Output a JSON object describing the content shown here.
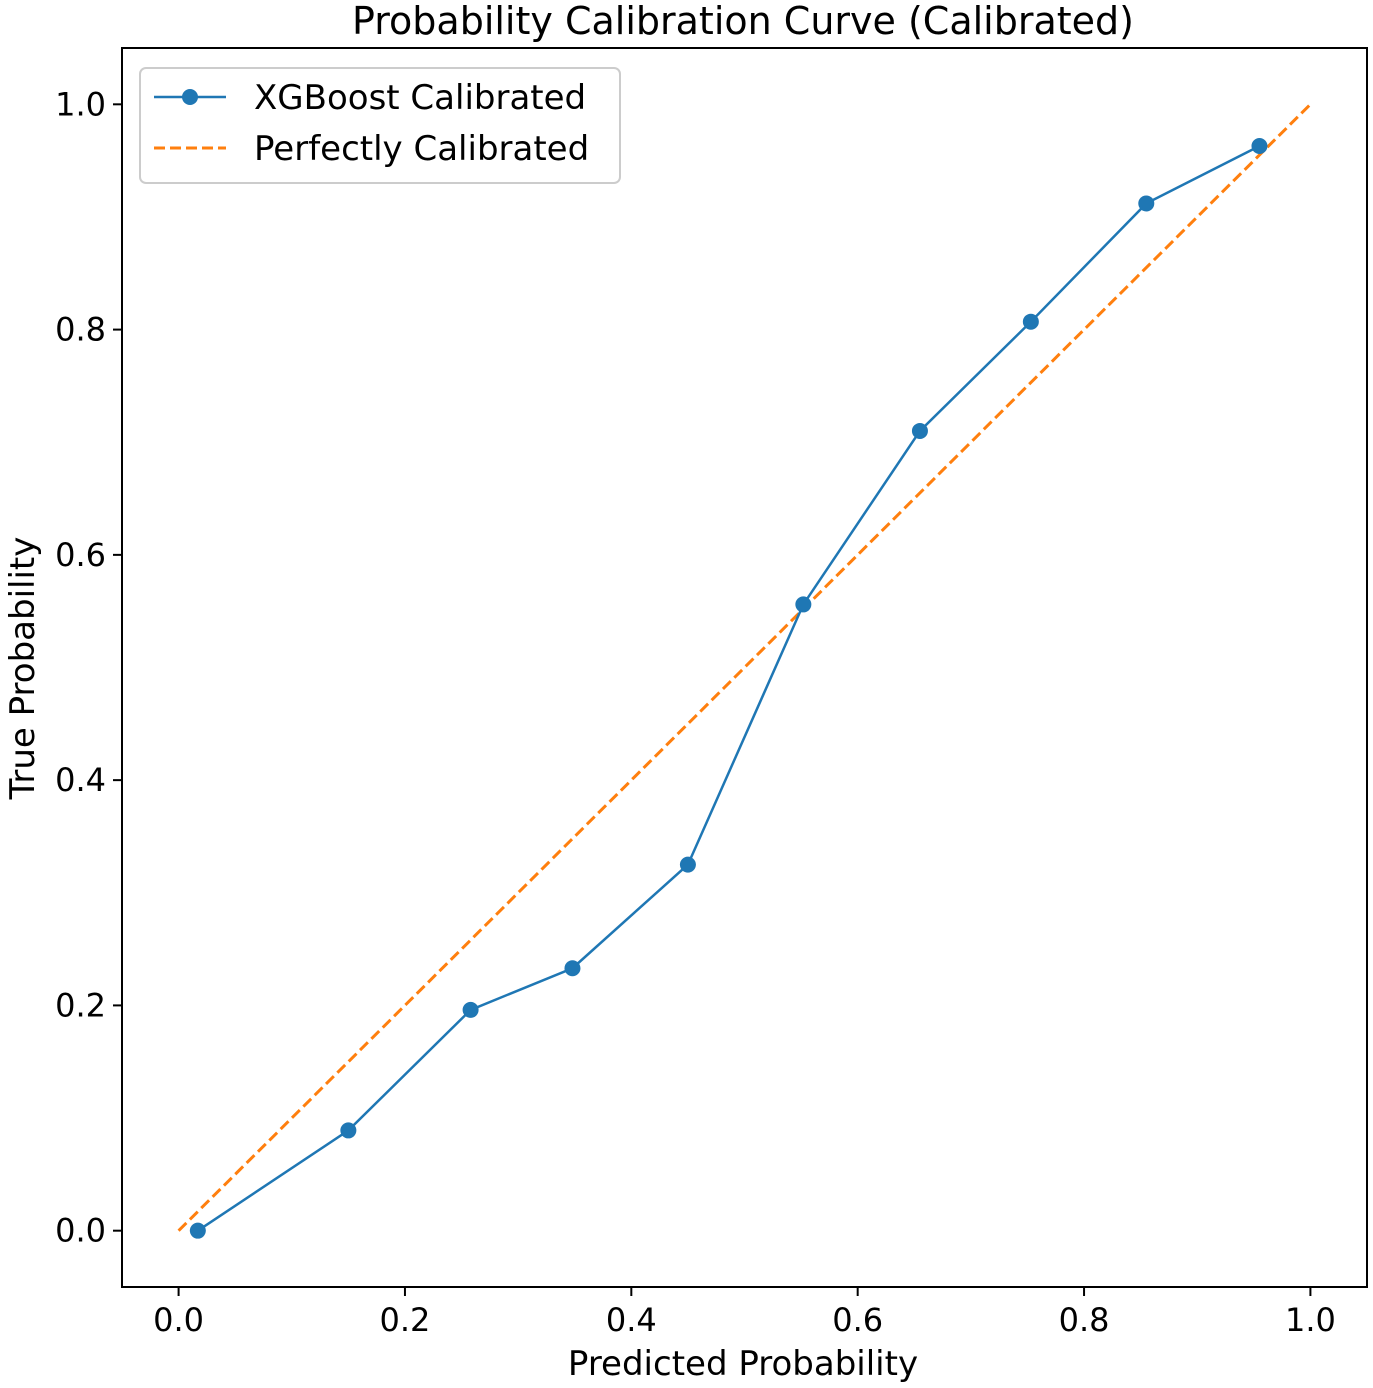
{
  "chart_data": {
    "type": "line",
    "title": "Probability Calibration Curve (Calibrated)",
    "xlabel": "Predicted Probability",
    "ylabel": "True Probability",
    "xlim": [
      -0.05,
      1.05
    ],
    "ylim": [
      -0.05,
      1.05
    ],
    "xticks": [
      "0.0",
      "0.2",
      "0.4",
      "0.6",
      "0.8",
      "1.0"
    ],
    "yticks": [
      "0.0",
      "0.2",
      "0.4",
      "0.6",
      "0.8",
      "1.0"
    ],
    "grid": false,
    "legend_position": "top-left",
    "series": [
      {
        "name": "XGBoost Calibrated",
        "style": "solid-with-markers",
        "color": "#1f77b4",
        "x": [
          0.017,
          0.15,
          0.258,
          0.348,
          0.45,
          0.552,
          0.655,
          0.753,
          0.855,
          0.955
        ],
        "y": [
          0.0,
          0.089,
          0.196,
          0.233,
          0.325,
          0.556,
          0.71,
          0.807,
          0.912,
          0.963
        ]
      },
      {
        "name": "Perfectly Calibrated",
        "style": "dashed",
        "color": "#ff7f0e",
        "x": [
          0,
          1
        ],
        "y": [
          0,
          1
        ]
      }
    ]
  }
}
